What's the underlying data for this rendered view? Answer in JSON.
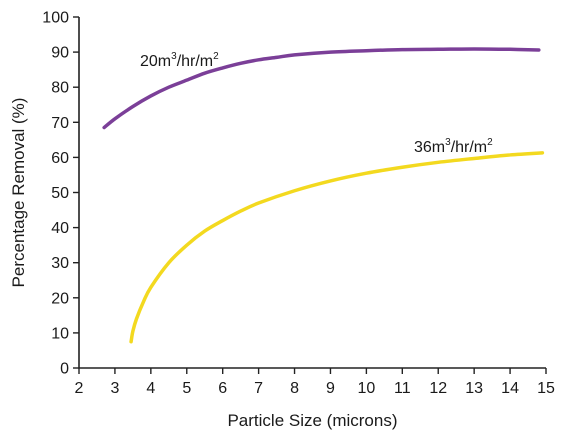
{
  "chart_data": {
    "type": "line",
    "xlabel": "Particle Size (microns)",
    "ylabel": "Percentage Removal (%)",
    "xlim": [
      2,
      15
    ],
    "ylim": [
      0,
      100
    ],
    "xticks": [
      2,
      3,
      4,
      5,
      6,
      7,
      8,
      9,
      10,
      11,
      12,
      13,
      14,
      15
    ],
    "yticks": [
      0,
      10,
      20,
      30,
      40,
      50,
      60,
      70,
      80,
      90,
      100
    ],
    "grid": false,
    "legend": "none",
    "series": [
      {
        "label_main": "20m",
        "label_sup1": "3",
        "label_mid": "/hr/m",
        "label_sup2": "2",
        "color": "#7b3f98",
        "x": [
          2.7,
          3.0,
          3.5,
          4.0,
          4.5,
          5.0,
          5.5,
          6.0,
          6.5,
          7.0,
          7.5,
          8.0,
          9.0,
          10.0,
          11.0,
          12.0,
          13.0,
          14.0,
          14.8
        ],
        "y": [
          68.5,
          71.0,
          74.5,
          77.5,
          80.0,
          82.0,
          84.0,
          85.5,
          86.8,
          87.8,
          88.5,
          89.2,
          90.0,
          90.4,
          90.7,
          90.8,
          90.9,
          90.8,
          90.6
        ]
      },
      {
        "label_main": "36m",
        "label_sup1": "3",
        "label_mid": "/hr/m",
        "label_sup2": "2",
        "color": "#f3d91f",
        "x": [
          3.45,
          3.5,
          3.6,
          3.8,
          4.0,
          4.5,
          5.0,
          5.5,
          6.0,
          6.5,
          7.0,
          8.0,
          9.0,
          10.0,
          11.0,
          12.0,
          13.0,
          14.0,
          14.9
        ],
        "y": [
          7.5,
          10.5,
          14.0,
          19.0,
          23.0,
          30.0,
          35.0,
          39.0,
          42.0,
          44.7,
          47.0,
          50.5,
          53.3,
          55.5,
          57.2,
          58.6,
          59.7,
          60.7,
          61.3
        ]
      }
    ]
  }
}
